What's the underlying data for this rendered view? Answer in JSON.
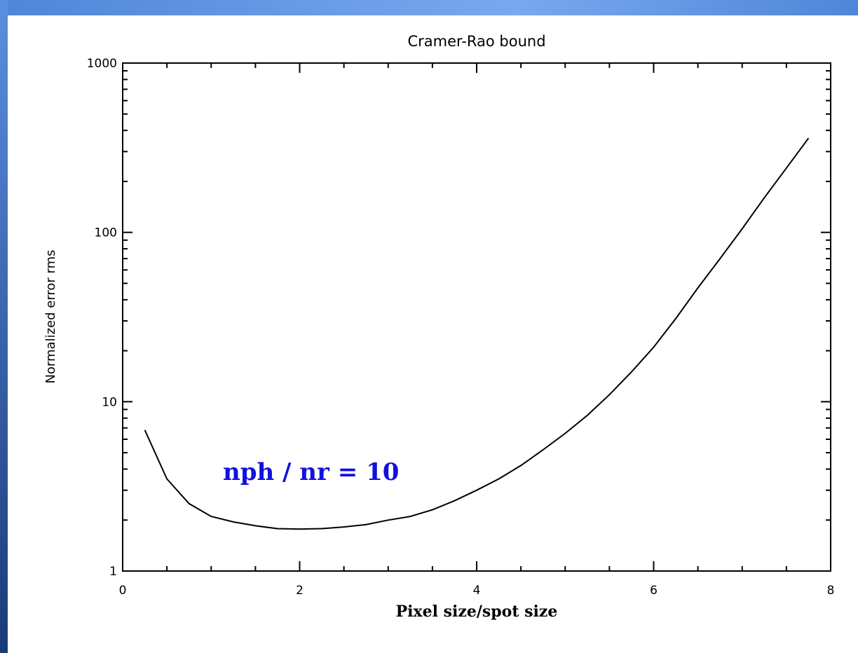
{
  "theme": {
    "accent_top": "#4f86d8",
    "accent_left_top": "#5b8fe0",
    "accent_left_bottom": "#1a3a78",
    "annotation_color": "#1010e0"
  },
  "chart_data": {
    "type": "line",
    "title": "Cramer-Rao bound",
    "xlabel": "Pixel size/spot size",
    "ylabel": "Normalized error rms",
    "xlim": [
      0,
      8
    ],
    "ylim": [
      1,
      1000
    ],
    "yscale": "log",
    "grid": false,
    "x_ticks": [
      0,
      2,
      4,
      6,
      8
    ],
    "x_tick_labels": [
      "0",
      "2",
      "4",
      "6",
      "8"
    ],
    "y_ticks": [
      1,
      10,
      100,
      1000
    ],
    "y_tick_labels": [
      "1",
      "10",
      "100",
      "1000"
    ],
    "annotation": "nph / nr = 10",
    "series": [
      {
        "x": [
          0.25,
          0.5,
          0.75,
          1.0,
          1.25,
          1.5,
          1.75,
          2.0,
          2.25,
          2.5,
          2.75,
          3.0,
          3.25,
          3.5,
          3.75,
          4.0,
          4.25,
          4.5,
          4.75,
          5.0,
          5.25,
          5.5,
          5.75,
          6.0,
          6.25,
          6.5,
          6.75,
          7.0,
          7.25,
          7.5,
          7.75
        ],
        "y": [
          6.8,
          3.5,
          2.5,
          2.1,
          1.95,
          1.85,
          1.78,
          1.77,
          1.78,
          1.82,
          1.88,
          2.0,
          2.1,
          2.3,
          2.6,
          3.0,
          3.5,
          4.2,
          5.2,
          6.5,
          8.3,
          11,
          15,
          21,
          31,
          47,
          70,
          105,
          160,
          240,
          360
        ]
      }
    ]
  }
}
